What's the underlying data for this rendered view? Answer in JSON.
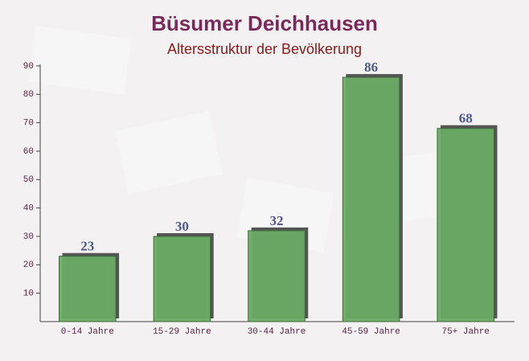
{
  "chart_data": {
    "type": "bar",
    "title": "Büsumer Deichhausen",
    "subtitle": "Altersstruktur der Bevölkerung",
    "categories": [
      "0-14 Jahre",
      "15-29 Jahre",
      "30-44 Jahre",
      "45-59 Jahre",
      "75+ Jahre"
    ],
    "values": [
      23,
      30,
      32,
      86,
      68
    ],
    "color": "#6aaa64",
    "ylim": [
      0,
      90
    ],
    "yticks": [
      10,
      20,
      30,
      40,
      50,
      60,
      70,
      80,
      90
    ],
    "grid": false
  }
}
